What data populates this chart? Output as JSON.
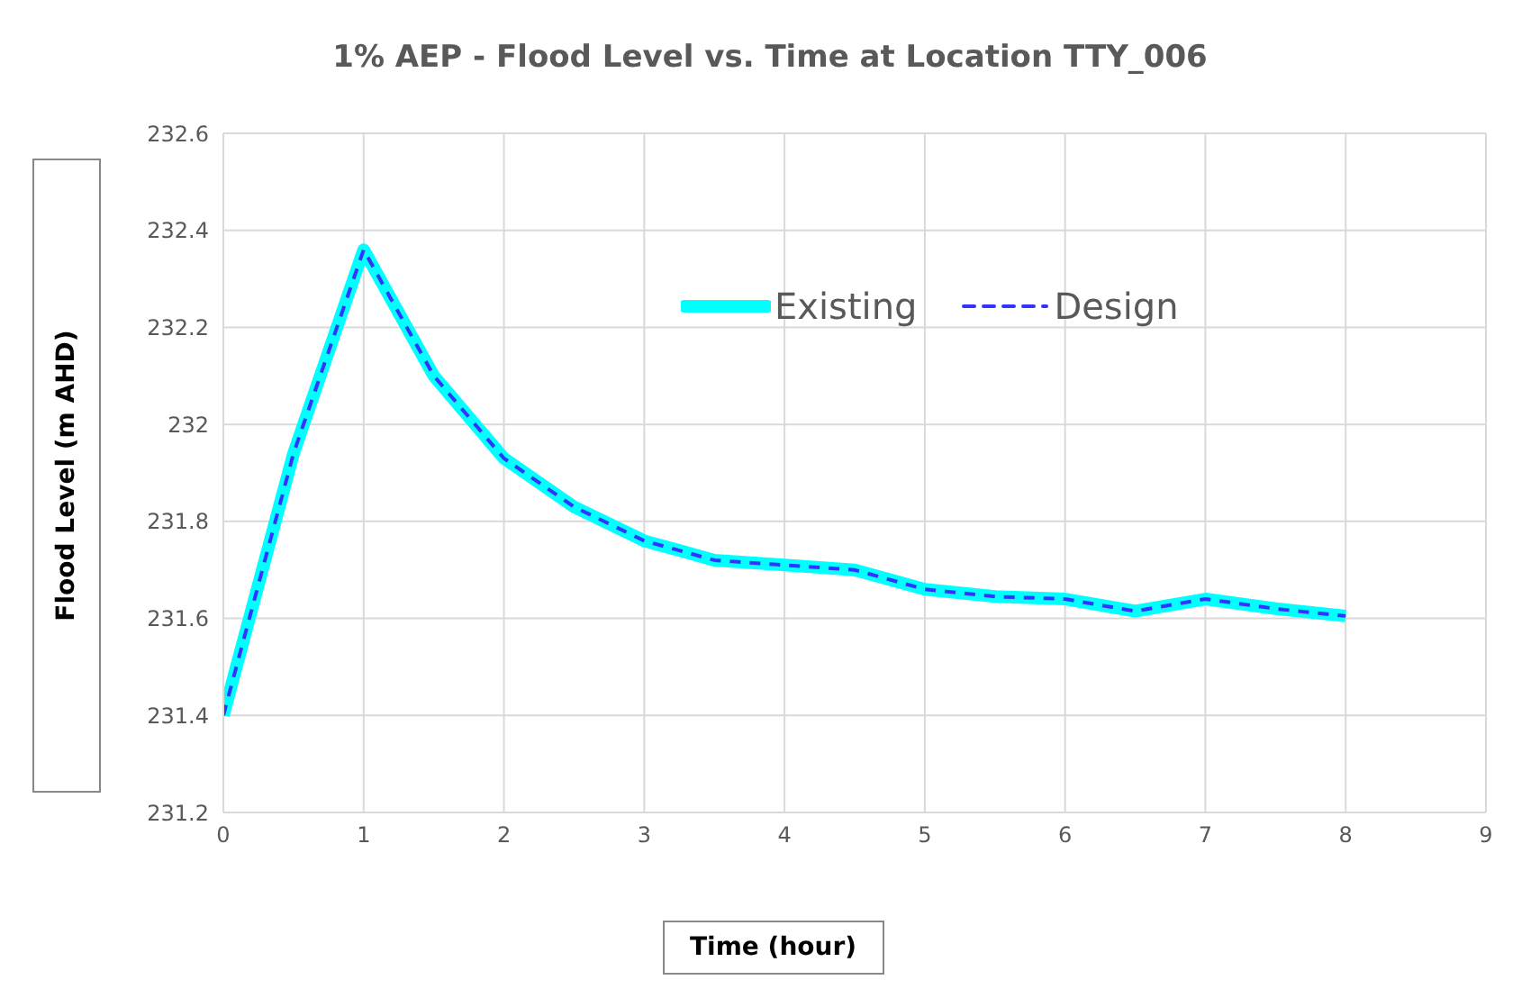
{
  "chart_data": {
    "type": "line",
    "title": "1% AEP - Flood Level vs. Time at Location TTY_006",
    "xlabel": "Time (hour)",
    "ylabel": "Flood Level (m AHD)",
    "x": [
      0,
      0.5,
      1,
      1.5,
      2,
      2.5,
      3,
      3.5,
      4,
      4.5,
      5,
      5.5,
      6,
      6.5,
      7,
      7.5,
      8
    ],
    "series": [
      {
        "name": "Existing",
        "color": "#00ffff",
        "line_style": "solid",
        "values": [
          231.4,
          231.94,
          232.36,
          232.1,
          231.93,
          231.83,
          231.76,
          231.72,
          231.71,
          231.7,
          231.66,
          231.645,
          231.64,
          231.615,
          231.64,
          231.62,
          231.605
        ]
      },
      {
        "name": "Design",
        "color": "#3333ff",
        "line_style": "dashed",
        "values": [
          231.4,
          231.94,
          232.36,
          232.1,
          231.93,
          231.83,
          231.76,
          231.72,
          231.71,
          231.7,
          231.66,
          231.645,
          231.64,
          231.615,
          231.64,
          231.62,
          231.605
        ]
      }
    ],
    "xlim": [
      0,
      9
    ],
    "xticks": [
      0,
      1,
      2,
      3,
      4,
      5,
      6,
      7,
      8,
      9
    ],
    "ylim": [
      231.2,
      232.6
    ],
    "yticks": [
      231.2,
      231.4,
      231.6,
      231.8,
      232,
      232.2,
      232.4,
      232.6
    ],
    "grid": true,
    "legend": "top",
    "marker": "none"
  }
}
